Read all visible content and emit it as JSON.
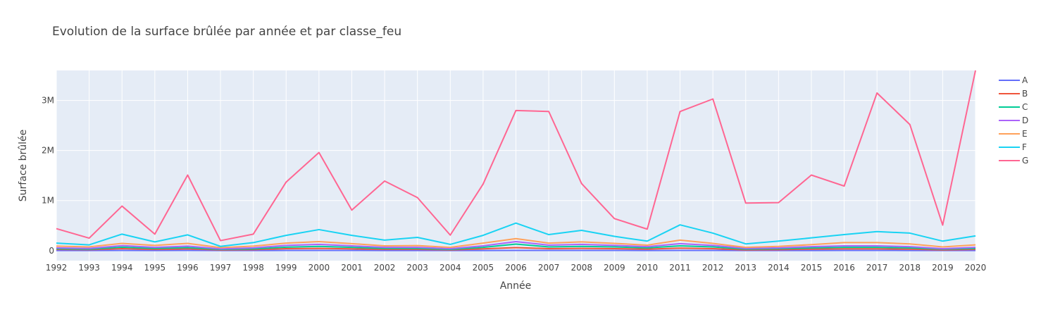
{
  "chart_data": {
    "type": "line",
    "title": "Evolution de la surface brûlée par année et par classe_feu",
    "xlabel": "Année",
    "ylabel": "Surface brûlée",
    "x": [
      1992,
      1993,
      1994,
      1995,
      1996,
      1997,
      1998,
      1999,
      2000,
      2001,
      2002,
      2003,
      2004,
      2005,
      2006,
      2007,
      2008,
      2009,
      2010,
      2011,
      2012,
      2013,
      2014,
      2015,
      2016,
      2017,
      2018,
      2019,
      2020
    ],
    "xlim": [
      1992,
      2020
    ],
    "ylim": [
      -200000,
      3600000
    ],
    "y_tick_values": [
      0,
      1000000,
      2000000,
      3000000
    ],
    "y_tick_labels": [
      "0",
      "1M",
      "2M",
      "3M"
    ],
    "grid": true,
    "legend_position": "right",
    "plot_background": "#e5ecf6",
    "series": [
      {
        "name": "A",
        "color": "#636efa",
        "values": [
          3000,
          2500,
          4000,
          3000,
          4500,
          2000,
          2500,
          3500,
          4000,
          3500,
          3000,
          3000,
          2000,
          3000,
          4500,
          3500,
          4000,
          3500,
          3000,
          4000,
          3500,
          2000,
          2500,
          3000,
          3500,
          3500,
          3000,
          2000,
          3000
        ]
      },
      {
        "name": "B",
        "color": "#ef553b",
        "values": [
          25000,
          20000,
          40000,
          25000,
          35000,
          15000,
          20000,
          40000,
          45000,
          35000,
          25000,
          25000,
          15000,
          35000,
          60000,
          40000,
          45000,
          40000,
          30000,
          50000,
          40000,
          15000,
          20000,
          30000,
          35000,
          35000,
          30000,
          15000,
          25000
        ]
      },
      {
        "name": "C",
        "color": "#00cc96",
        "values": [
          40000,
          30000,
          70000,
          45000,
          60000,
          25000,
          35000,
          70000,
          85000,
          65000,
          45000,
          45000,
          25000,
          65000,
          130000,
          75000,
          85000,
          75000,
          55000,
          95000,
          75000,
          30000,
          40000,
          55000,
          65000,
          65000,
          55000,
          30000,
          45000
        ]
      },
      {
        "name": "D",
        "color": "#ab63fa",
        "values": [
          55000,
          45000,
          100000,
          65000,
          90000,
          35000,
          55000,
          105000,
          125000,
          95000,
          65000,
          65000,
          40000,
          95000,
          180000,
          110000,
          125000,
          105000,
          80000,
          140000,
          105000,
          45000,
          55000,
          80000,
          95000,
          95000,
          80000,
          40000,
          65000
        ]
      },
      {
        "name": "E",
        "color": "#ffa15a",
        "values": [
          90000,
          75000,
          145000,
          105000,
          145000,
          60000,
          90000,
          150000,
          180000,
          140000,
          95000,
          100000,
          65000,
          150000,
          240000,
          150000,
          175000,
          145000,
          110000,
          210000,
          145000,
          65000,
          85000,
          120000,
          160000,
          160000,
          135000,
          75000,
          115000
        ]
      },
      {
        "name": "F",
        "color": "#19d3f3",
        "values": [
          150000,
          115000,
          330000,
          175000,
          315000,
          85000,
          160000,
          305000,
          420000,
          305000,
          210000,
          265000,
          125000,
          305000,
          550000,
          320000,
          405000,
          285000,
          190000,
          515000,
          350000,
          135000,
          190000,
          255000,
          320000,
          380000,
          350000,
          190000,
          295000
        ]
      },
      {
        "name": "G",
        "color": "#ff6692",
        "values": [
          440000,
          250000,
          890000,
          330000,
          1510000,
          200000,
          330000,
          1370000,
          1960000,
          810000,
          1390000,
          1060000,
          310000,
          1330000,
          2800000,
          2780000,
          1340000,
          640000,
          430000,
          2780000,
          3030000,
          950000,
          960000,
          1510000,
          1290000,
          3150000,
          2520000,
          510000,
          3600000
        ]
      }
    ]
  }
}
